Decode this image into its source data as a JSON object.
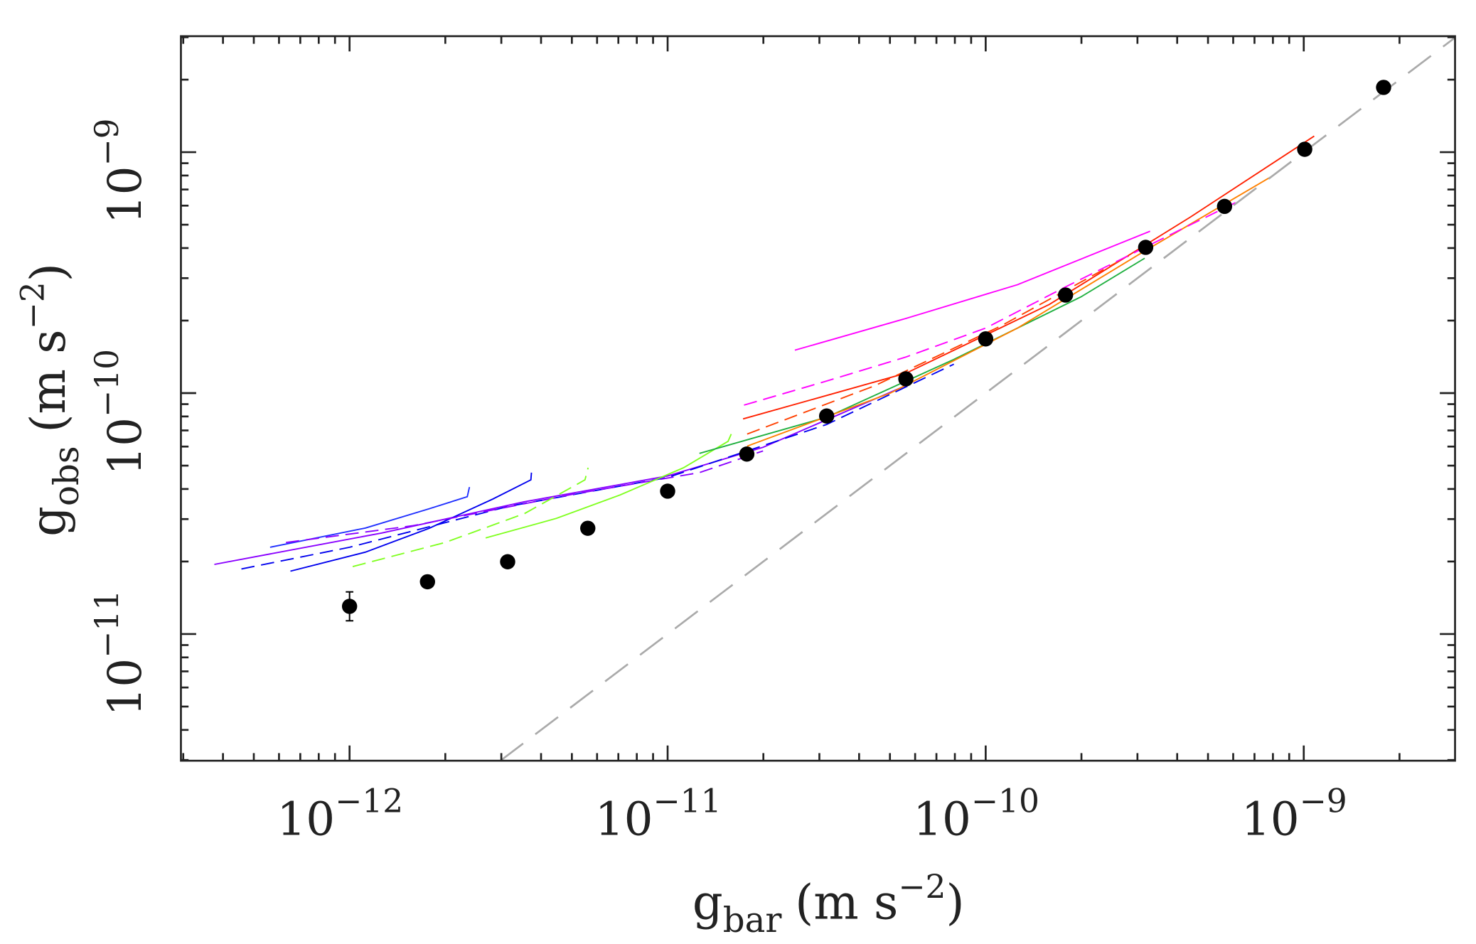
{
  "chart_data": {
    "type": "scatter",
    "xlabel": {
      "main": "g",
      "sub": "bar",
      "unit": "(m s",
      "sup": "−2",
      "close": ")"
    },
    "ylabel": {
      "main": "g",
      "sub": "obs",
      "unit": "(m s",
      "sup": "−2",
      "close": ")"
    },
    "x_scale": "log",
    "y_scale": "log",
    "xlim": [
      2.95e-13,
      2.99e-09
    ],
    "ylim": [
      2.98e-12,
      3.03e-09
    ],
    "x_ticks": [
      {
        "base": "10",
        "exp": "−12"
      },
      {
        "base": "10",
        "exp": "−11"
      },
      {
        "base": "10",
        "exp": "−10"
      },
      {
        "base": "10",
        "exp": "−9"
      }
    ],
    "y_ticks": [
      {
        "base": "10",
        "exp": "−11"
      },
      {
        "base": "10",
        "exp": "−10"
      },
      {
        "base": "10",
        "exp": "−9"
      }
    ],
    "grid": false,
    "legend": "none",
    "binned_points": {
      "color": "#000000",
      "log10_x": [
        -12.0,
        -11.755,
        -11.503,
        -11.251,
        -11.0,
        -10.751,
        -10.5,
        -10.251,
        -10.0,
        -9.749,
        -9.497,
        -9.249,
        -8.997,
        -8.749
      ],
      "log10_y": [
        -10.885,
        -10.783,
        -10.7,
        -10.561,
        -10.407,
        -10.253,
        -10.095,
        -9.941,
        -9.775,
        -9.593,
        -9.395,
        -9.225,
        -8.988,
        -8.731
      ],
      "log10_y_err": [
        0.06,
        0,
        0,
        0,
        0,
        0,
        0,
        0,
        0,
        0,
        0,
        0,
        0,
        0
      ]
    },
    "one_to_one_line": {
      "color": "#aaaaaa",
      "style": "dashed"
    },
    "model_curves": [
      {
        "color": "#8a00ff",
        "style": "solid",
        "log10_x": [
          -12.425,
          -11.9,
          -11.45,
          -11.0,
          -10.7,
          -10.25
        ],
        "log10_y": [
          -10.711,
          -10.581,
          -10.451,
          -10.344,
          -10.225,
          -9.968
        ]
      },
      {
        "color": "#0000ee",
        "style": "solid",
        "log10_x": [
          -12.186,
          -11.95,
          -11.75,
          -11.55,
          -11.43,
          -11.428
        ],
        "log10_y": [
          -10.739,
          -10.66,
          -10.561,
          -10.44,
          -10.36,
          -10.33
        ]
      },
      {
        "color": "#2030ff",
        "style": "solid",
        "log10_x": [
          -12.25,
          -11.95,
          -11.75,
          -11.63,
          -11.623
        ],
        "log10_y": [
          -10.64,
          -10.56,
          -10.48,
          -10.43,
          -10.39
        ]
      },
      {
        "color": "#0000ee",
        "style": "dashed",
        "log10_x": [
          -12.34,
          -12.0,
          -11.5,
          -11.0,
          -10.5,
          -10.1
        ],
        "log10_y": [
          -10.73,
          -10.64,
          -10.47,
          -10.35,
          -10.13,
          -9.88
        ]
      },
      {
        "color": "#8a00ff",
        "style": "dashed",
        "log10_x": [
          -12.2,
          -11.8,
          -11.3,
          -10.9,
          -10.7
        ],
        "log10_y": [
          -10.62,
          -10.55,
          -10.42,
          -10.33,
          -10.24
        ]
      },
      {
        "color": "#80ff20",
        "style": "solid",
        "log10_x": [
          -11.572,
          -11.35,
          -11.15,
          -10.95,
          -10.81,
          -10.8
        ],
        "log10_y": [
          -10.601,
          -10.52,
          -10.423,
          -10.31,
          -10.2,
          -10.17
        ]
      },
      {
        "color": "#80ff20",
        "style": "dashed",
        "log10_x": [
          -11.99,
          -11.7,
          -11.45,
          -11.26,
          -11.25
        ],
        "log10_y": [
          -10.72,
          -10.62,
          -10.5,
          -10.36,
          -10.31
        ]
      },
      {
        "color": "#20b040",
        "style": "solid",
        "log10_x": [
          -10.9,
          -10.5,
          -10.1,
          -9.7,
          -9.5
        ],
        "log10_y": [
          -10.25,
          -10.1,
          -9.86,
          -9.6,
          -9.44
        ]
      },
      {
        "color": "#ff2000",
        "style": "solid",
        "log10_x": [
          -10.763,
          -10.25,
          -9.8,
          -9.356,
          -8.967
        ],
        "log10_y": [
          -10.107,
          -9.917,
          -9.632,
          -9.269,
          -8.933
        ]
      },
      {
        "color": "#ff8000",
        "style": "solid",
        "log10_x": [
          -10.75,
          -10.3,
          -9.9,
          -9.5,
          -9.1
        ],
        "log10_y": [
          -10.22,
          -10.0,
          -9.73,
          -9.41,
          -9.1
        ]
      },
      {
        "color": "#ff4000",
        "style": "dashed",
        "log10_x": [
          -10.75,
          -10.35,
          -9.95,
          -9.55
        ],
        "log10_y": [
          -10.17,
          -9.97,
          -9.72,
          -9.43
        ]
      },
      {
        "color": "#ff00ff",
        "style": "dashed",
        "log10_x": [
          -10.76,
          -10.5,
          -10.25,
          -10.0,
          -9.75,
          -9.4,
          -9.2
        ],
        "log10_y": [
          -10.05,
          -9.95,
          -9.85,
          -9.73,
          -9.56,
          -9.33,
          -9.2
        ]
      },
      {
        "color": "#ff00ff",
        "style": "solid",
        "log10_x": [
          -10.6,
          -10.25,
          -9.9,
          -9.483
        ],
        "log10_y": [
          -9.822,
          -9.69,
          -9.55,
          -9.328
        ]
      }
    ]
  }
}
